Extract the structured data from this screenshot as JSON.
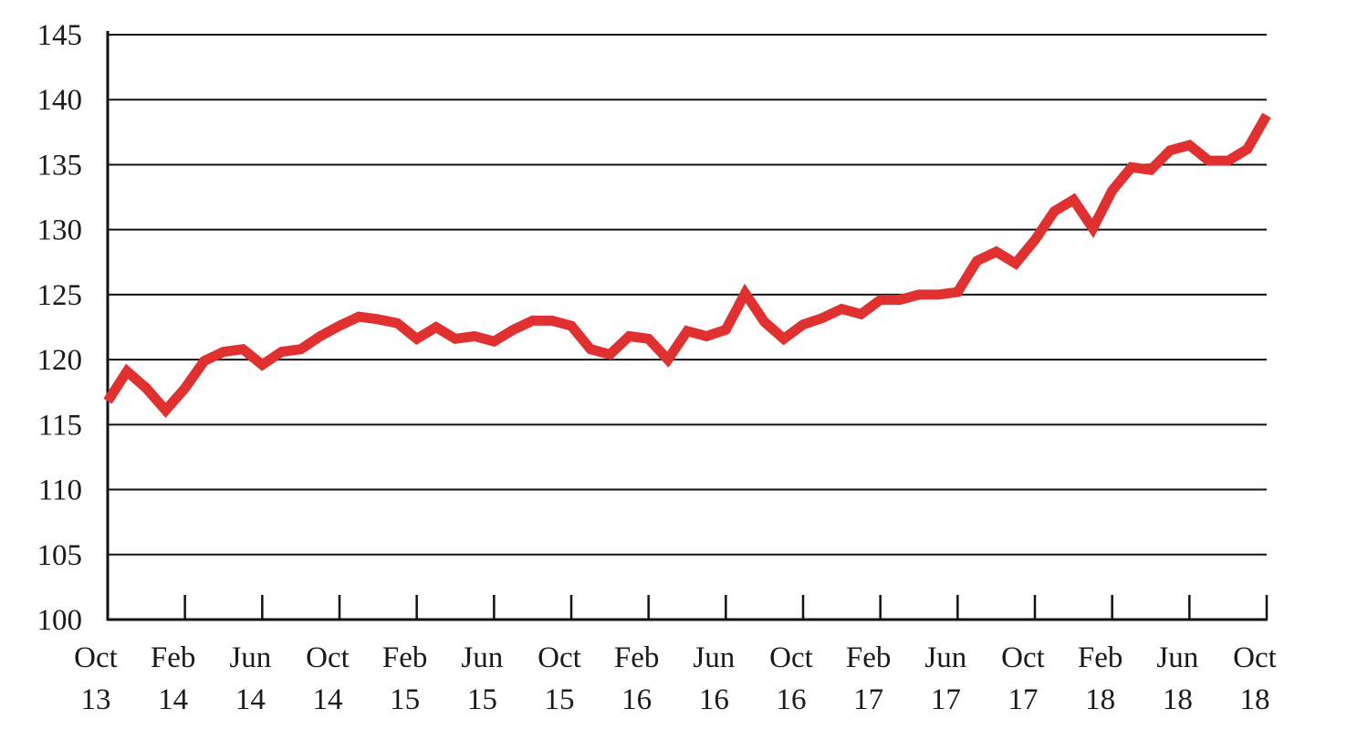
{
  "chart_data": {
    "type": "line",
    "title": "",
    "xlabel": "",
    "ylabel": "",
    "ylim": [
      100,
      145
    ],
    "yticks": [
      "100",
      "105",
      "110",
      "115",
      "120",
      "125",
      "130",
      "135",
      "140",
      "145"
    ],
    "xticks": [
      {
        "month": "Oct",
        "year": "13"
      },
      {
        "month": "Feb",
        "year": "14"
      },
      {
        "month": "Jun",
        "year": "14"
      },
      {
        "month": "Oct",
        "year": "14"
      },
      {
        "month": "Feb",
        "year": "15"
      },
      {
        "month": "Jun",
        "year": "15"
      },
      {
        "month": "Oct",
        "year": "15"
      },
      {
        "month": "Feb",
        "year": "16"
      },
      {
        "month": "Jun",
        "year": "16"
      },
      {
        "month": "Oct",
        "year": "16"
      },
      {
        "month": "Feb",
        "year": "17"
      },
      {
        "month": "Jun",
        "year": "17"
      },
      {
        "month": "Oct",
        "year": "17"
      },
      {
        "month": "Feb",
        "year": "18"
      },
      {
        "month": "Jun",
        "year": "18"
      },
      {
        "month": "Oct",
        "year": "18"
      }
    ],
    "grid": true,
    "color": "#e03030",
    "x": [
      "2013-10",
      "2013-11",
      "2013-12",
      "2014-01",
      "2014-02",
      "2014-03",
      "2014-04",
      "2014-05",
      "2014-06",
      "2014-07",
      "2014-08",
      "2014-09",
      "2014-10",
      "2014-11",
      "2014-12",
      "2015-01",
      "2015-02",
      "2015-03",
      "2015-04",
      "2015-05",
      "2015-06",
      "2015-07",
      "2015-08",
      "2015-09",
      "2015-10",
      "2015-11",
      "2015-12",
      "2016-01",
      "2016-02",
      "2016-03",
      "2016-04",
      "2016-05",
      "2016-06",
      "2016-07",
      "2016-08",
      "2016-09",
      "2016-10",
      "2016-11",
      "2016-12",
      "2017-01",
      "2017-02",
      "2017-03",
      "2017-04",
      "2017-05",
      "2017-06",
      "2017-07",
      "2017-08",
      "2017-09",
      "2017-10",
      "2017-11",
      "2017-12",
      "2018-01",
      "2018-02",
      "2018-03",
      "2018-04",
      "2018-05",
      "2018-06",
      "2018-07",
      "2018-08",
      "2018-09",
      "2018-10"
    ],
    "values": [
      116.8,
      119.1,
      117.8,
      116.1,
      117.8,
      119.9,
      120.6,
      120.8,
      119.6,
      120.6,
      120.8,
      121.8,
      122.6,
      123.3,
      123.1,
      122.8,
      121.6,
      122.5,
      121.6,
      121.8,
      121.4,
      122.3,
      123.0,
      123.0,
      122.6,
      120.8,
      120.4,
      121.8,
      121.6,
      120.0,
      122.2,
      121.8,
      122.3,
      125.1,
      122.9,
      121.6,
      122.7,
      123.2,
      123.9,
      123.5,
      124.6,
      124.6,
      125.0,
      125.0,
      125.2,
      127.6,
      128.3,
      127.4,
      129.2,
      131.4,
      132.3,
      130.1,
      133.0,
      134.8,
      134.6,
      136.1,
      136.5,
      135.3,
      135.3,
      136.2,
      138.8
    ]
  }
}
